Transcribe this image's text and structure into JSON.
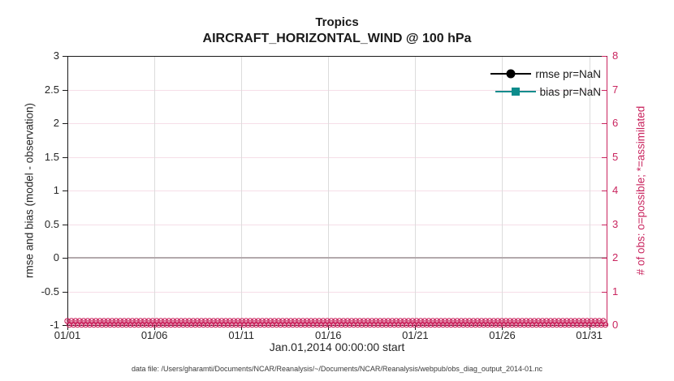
{
  "titles": {
    "line1": "Tropics",
    "line2": "AIRCRAFT_HORIZONTAL_WIND @ 100 hPa"
  },
  "axes": {
    "left": {
      "label": "rmse and bias (model - observation)",
      "ticks": [
        "3",
        "2.5",
        "2",
        "1.5",
        "1",
        "0.5",
        "0",
        "-0.5",
        "-1"
      ]
    },
    "right": {
      "label": "# of obs: o=possible; *=assimilated",
      "ticks": [
        "8",
        "7",
        "6",
        "5",
        "4",
        "3",
        "2",
        "1",
        "0"
      ]
    },
    "x": {
      "label": "Jan.01,2014 00:00:00 start",
      "ticks": [
        "01/01",
        "01/06",
        "01/11",
        "01/16",
        "01/21",
        "01/26",
        "01/31"
      ]
    }
  },
  "legend": {
    "items": [
      {
        "label": "rmse pr=NaN",
        "marker": "circle",
        "color": "#000000"
      },
      {
        "label": "bias pr=NaN",
        "marker": "square",
        "color": "#0d8c8c"
      }
    ]
  },
  "footer": "data file: /Users/gharamti/Documents/NCAR/Reanalysis/~/Documents/NCAR/Reanalysis/webpub/obs_diag_output_2014-01.nc",
  "colors": {
    "accent_pink": "#c9245e",
    "pink_gridline": "#f6dee8",
    "gray_gridline": "#dcdcdc",
    "bias_teal": "#0d8c8c",
    "rmse_black": "#000000",
    "zero_line": "#b3a9ac",
    "axis_dark": "#1a1a1a"
  },
  "chart_data": {
    "type": "line",
    "title": "Tropics",
    "subtitle": "AIRCRAFT_HORIZONTAL_WIND @ 100 hPa",
    "xlabel": "Jan.01,2014 00:00:00 start",
    "x_tick_labels": [
      "01/01",
      "01/06",
      "01/11",
      "01/16",
      "01/21",
      "01/26",
      "01/31"
    ],
    "x_range_days": [
      0,
      31
    ],
    "ylabel_left": "rmse and bias (model - observation)",
    "ylim_left": [
      -1,
      3
    ],
    "ylabel_right": "# of obs: o=possible; *=assimilated",
    "ylim_right": [
      0,
      8
    ],
    "grid": true,
    "legend_position": "upper-right-inside, no box",
    "series": [
      {
        "name": "rmse pr=NaN",
        "color": "#000000",
        "marker": "filled-circle",
        "values": "NaN (no curve drawn)"
      },
      {
        "name": "bias pr=NaN",
        "color": "#0d8c8c",
        "marker": "filled-square",
        "values": "NaN (no curve drawn)"
      }
    ],
    "obs_count_markers": {
      "possible_symbol": "o",
      "assimilated_symbol": "*",
      "constant_value": 0,
      "axis": "right",
      "description": "dense overlapping pink o and * markers at count=0 spanning the full month along the bottom axis"
    },
    "zero_reference_line": {
      "y_left": 0,
      "color": "#b3a9ac"
    }
  }
}
